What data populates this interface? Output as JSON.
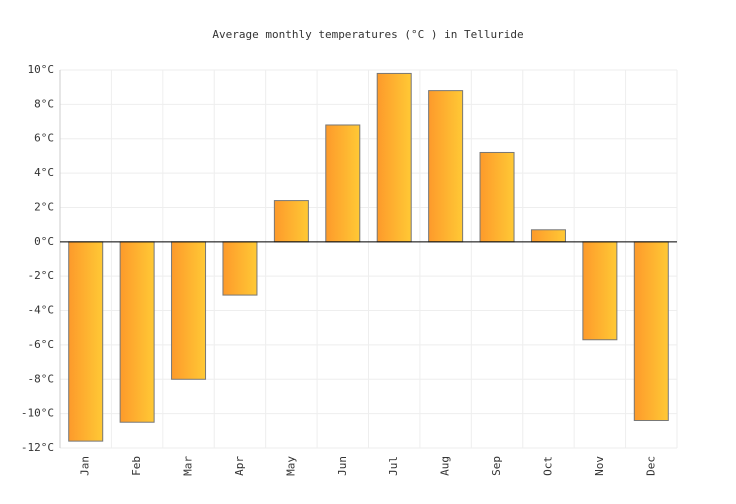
{
  "chart_data": {
    "type": "bar",
    "title": "Average monthly temperatures (°C ) in Telluride",
    "categories": [
      "Jan",
      "Feb",
      "Mar",
      "Apr",
      "May",
      "Jun",
      "Jul",
      "Aug",
      "Sep",
      "Oct",
      "Nov",
      "Dec"
    ],
    "values": [
      -11.6,
      -10.5,
      -8,
      -3.1,
      2.4,
      6.8,
      9.8,
      8.8,
      5.2,
      0.7,
      -5.7,
      -10.4
    ],
    "color": [
      "#fd9a2b",
      "#ffc935"
    ],
    "ylim": [
      -12,
      10
    ],
    "yticks": [
      {
        "value": -12,
        "label": "-12°C"
      },
      {
        "value": -10,
        "label": "-10°C"
      },
      {
        "value": -8,
        "label": "-8°C"
      },
      {
        "value": -6,
        "label": "-6°C"
      },
      {
        "value": -4,
        "label": "-4°C"
      },
      {
        "value": -2,
        "label": "-2°C"
      },
      {
        "value": 0,
        "label": "0°C"
      },
      {
        "value": 2,
        "label": "2°C"
      },
      {
        "value": 4,
        "label": "4°C"
      },
      {
        "value": 6,
        "label": "6°C"
      },
      {
        "value": 8,
        "label": "8°C"
      },
      {
        "value": 10,
        "label": "10°C"
      }
    ],
    "grid": true
  }
}
